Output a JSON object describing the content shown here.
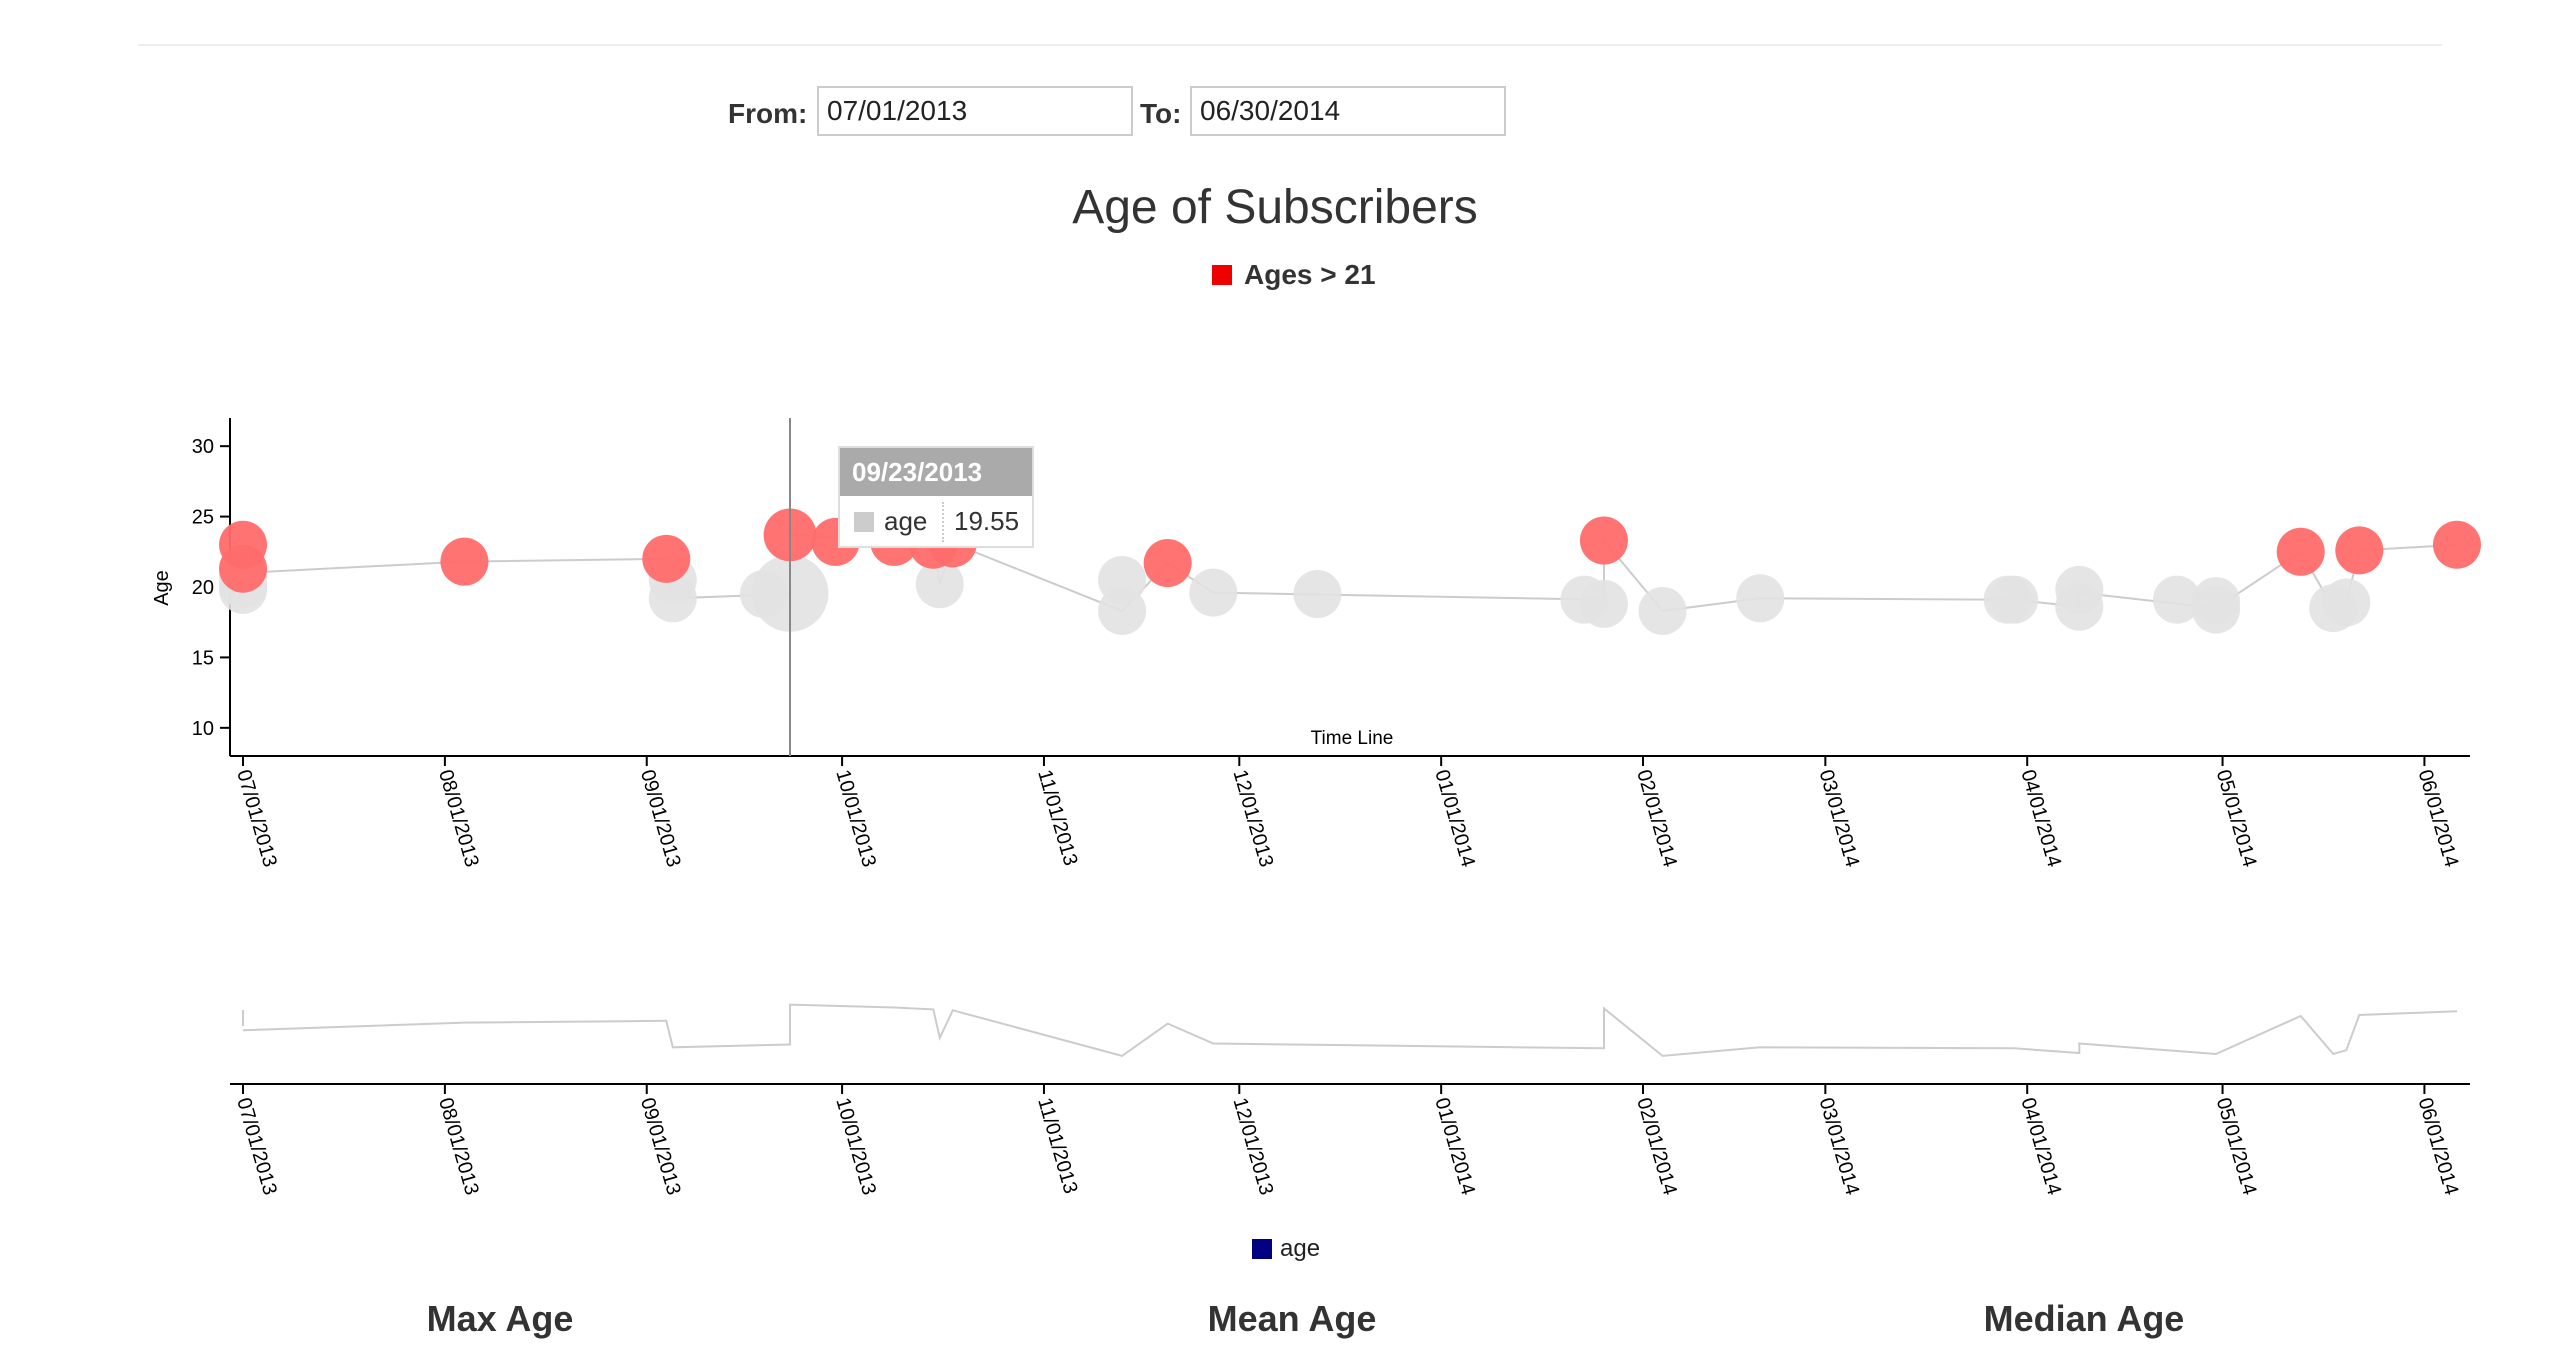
{
  "form": {
    "from_label": "From:",
    "from_value": "07/01/2013",
    "to_label": "To:",
    "to_value": "06/30/2014"
  },
  "chart_data": {
    "type": "scatter",
    "title": "Age of Subscribers",
    "xlabel": "Time Line",
    "ylabel": "Age",
    "yticks": [
      10,
      15,
      20,
      25,
      30
    ],
    "ylim": [
      8,
      32
    ],
    "xlim": [
      "06/29/2013",
      "06/08/2014"
    ],
    "xticks": [
      "07/01/2013",
      "08/01/2013",
      "09/01/2013",
      "10/01/2013",
      "11/01/2013",
      "12/01/2013",
      "01/01/2014",
      "02/01/2014",
      "03/01/2014",
      "04/01/2014",
      "05/01/2014",
      "06/01/2014"
    ],
    "legend_top": {
      "label": "Ages > 21",
      "color": "#ee0000"
    },
    "legend_bottom": {
      "label": "age",
      "color": "#000080"
    },
    "colors": {
      "above": "#ff6b6b",
      "below": "#e2e2e2",
      "line": "#cccccc"
    },
    "threshold": 21,
    "points": [
      {
        "date": "07/01/2013",
        "age": 23.0,
        "size": 1.0
      },
      {
        "date": "07/01/2013",
        "age": 21.3,
        "size": 1.0
      },
      {
        "date": "07/01/2013",
        "age": 20.8,
        "size": 1.0
      },
      {
        "date": "07/01/2013",
        "age": 20.2,
        "size": 1.0
      },
      {
        "date": "07/01/2013",
        "age": 19.8,
        "size": 1.0
      },
      {
        "date": "08/04/2013",
        "age": 21.8,
        "size": 1.0
      },
      {
        "date": "09/04/2013",
        "age": 22.0,
        "size": 1.0
      },
      {
        "date": "09/05/2013",
        "age": 20.5,
        "size": 1.0
      },
      {
        "date": "09/05/2013",
        "age": 19.2,
        "size": 1.0
      },
      {
        "date": "09/19/2013",
        "age": 19.5,
        "size": 1.0
      },
      {
        "date": "09/23/2013",
        "age": 23.7,
        "size": 1.1
      },
      {
        "date": "09/23/2013",
        "age": 19.55,
        "size": 1.6
      },
      {
        "date": "09/30/2013",
        "age": 23.2,
        "size": 1.0
      },
      {
        "date": "10/09/2013",
        "age": 23.2,
        "size": 1.0
      },
      {
        "date": "10/15/2013",
        "age": 23.0,
        "size": 1.0
      },
      {
        "date": "10/16/2013",
        "age": 20.2,
        "size": 1.0
      },
      {
        "date": "10/18/2013",
        "age": 23.1,
        "size": 1.0
      },
      {
        "date": "11/13/2013",
        "age": 20.5,
        "size": 1.0
      },
      {
        "date": "11/13/2013",
        "age": 18.3,
        "size": 1.0
      },
      {
        "date": "11/20/2013",
        "age": 21.7,
        "size": 1.0
      },
      {
        "date": "11/27/2013",
        "age": 19.6,
        "size": 1.0
      },
      {
        "date": "12/13/2013",
        "age": 19.5,
        "size": 1.0
      },
      {
        "date": "01/23/2014",
        "age": 19.1,
        "size": 1.0
      },
      {
        "date": "01/26/2014",
        "age": 23.3,
        "size": 1.0
      },
      {
        "date": "01/26/2014",
        "age": 18.8,
        "size": 1.0
      },
      {
        "date": "02/04/2014",
        "age": 18.3,
        "size": 1.0
      },
      {
        "date": "02/19/2014",
        "age": 19.2,
        "size": 1.0
      },
      {
        "date": "03/29/2014",
        "age": 19.1,
        "size": 1.0
      },
      {
        "date": "03/30/2014",
        "age": 19.1,
        "size": 1.0
      },
      {
        "date": "04/09/2014",
        "age": 19.8,
        "size": 1.0
      },
      {
        "date": "04/09/2014",
        "age": 18.6,
        "size": 1.0
      },
      {
        "date": "04/24/2014",
        "age": 19.1,
        "size": 1.0
      },
      {
        "date": "04/30/2014",
        "age": 19.0,
        "size": 1.0
      },
      {
        "date": "04/30/2014",
        "age": 18.4,
        "size": 1.0
      },
      {
        "date": "05/13/2014",
        "age": 22.5,
        "size": 1.0
      },
      {
        "date": "05/18/2014",
        "age": 18.5,
        "size": 1.0
      },
      {
        "date": "05/20/2014",
        "age": 18.9,
        "size": 1.0
      },
      {
        "date": "05/22/2014",
        "age": 22.6,
        "size": 1.0
      },
      {
        "date": "06/06/2014",
        "age": 23.0,
        "size": 1.0
      }
    ],
    "line": [
      {
        "date": "07/01/2013",
        "age": 21.0
      },
      {
        "date": "08/04/2013",
        "age": 21.8
      },
      {
        "date": "09/04/2013",
        "age": 22.0
      },
      {
        "date": "09/05/2013",
        "age": 19.2
      },
      {
        "date": "09/23/2013",
        "age": 19.5
      },
      {
        "date": "09/23/2013",
        "age": 23.7
      },
      {
        "date": "10/09/2013",
        "age": 23.4
      },
      {
        "date": "10/15/2013",
        "age": 23.2
      },
      {
        "date": "10/16/2013",
        "age": 20.2
      },
      {
        "date": "10/18/2013",
        "age": 23.1
      },
      {
        "date": "11/13/2013",
        "age": 18.3
      },
      {
        "date": "11/20/2013",
        "age": 21.7
      },
      {
        "date": "11/27/2013",
        "age": 19.6
      },
      {
        "date": "01/26/2014",
        "age": 19.1
      },
      {
        "date": "01/26/2014",
        "age": 23.3
      },
      {
        "date": "02/04/2014",
        "age": 18.3
      },
      {
        "date": "02/19/2014",
        "age": 19.2
      },
      {
        "date": "03/30/2014",
        "age": 19.1
      },
      {
        "date": "04/09/2014",
        "age": 18.6
      },
      {
        "date": "04/09/2014",
        "age": 19.6
      },
      {
        "date": "04/30/2014",
        "age": 18.5
      },
      {
        "date": "05/13/2014",
        "age": 22.5
      },
      {
        "date": "05/18/2014",
        "age": 18.5
      },
      {
        "date": "05/20/2014",
        "age": 18.9
      },
      {
        "date": "05/22/2014",
        "age": 22.6
      },
      {
        "date": "06/06/2014",
        "age": 23.0
      }
    ],
    "cursor_date": "09/23/2013",
    "tooltip": {
      "date": "09/23/2013",
      "series": "age",
      "value": "19.55"
    }
  },
  "stats": {
    "max_label": "Max Age",
    "mean_label": "Mean Age",
    "median_label": "Median Age"
  }
}
